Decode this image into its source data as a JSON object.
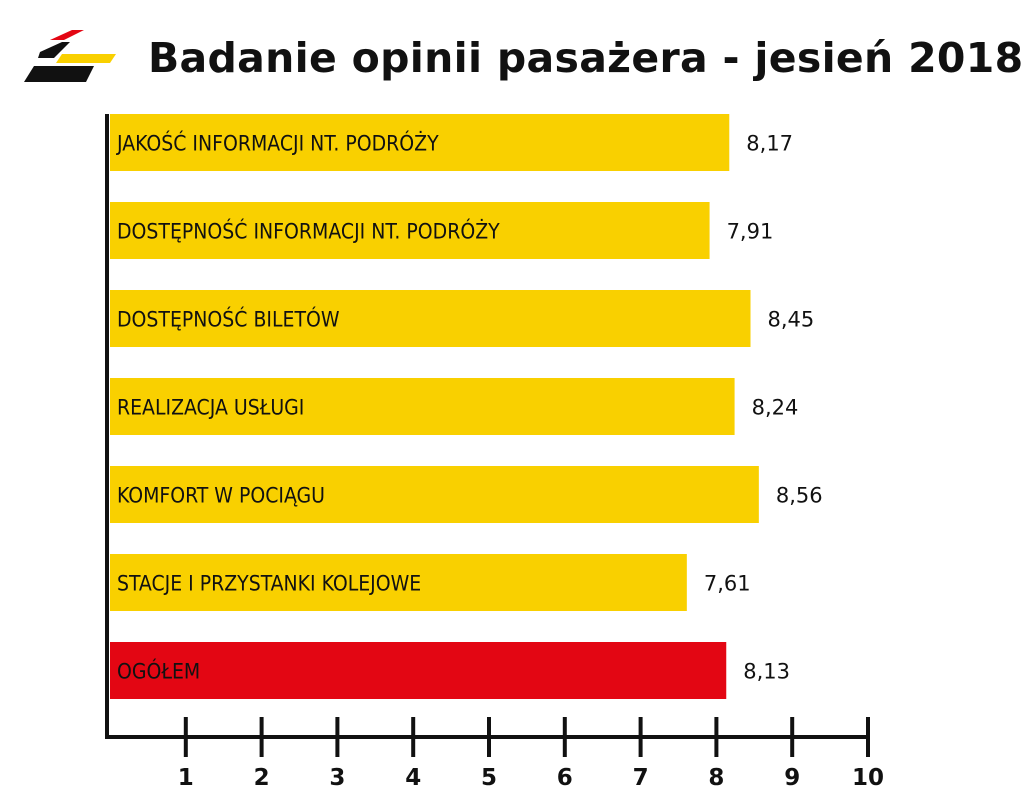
{
  "header": {
    "title": "Badanie opinii pasażera - jesień 2018",
    "logo_icon": "brand-logo-icon"
  },
  "colors": {
    "bar_default": "#f9d000",
    "bar_highlight": "#e30613",
    "axis": "#111111",
    "logo_red": "#e30613",
    "logo_yellow": "#f9d000",
    "logo_black": "#111111"
  },
  "chart_data": {
    "type": "bar",
    "orientation": "horizontal",
    "categories": [
      "JAKOŚĆ INFORMACJI NT. PODRÓŻY",
      "DOSTĘPNOŚĆ INFORMACJI NT. PODRÓŻY",
      "DOSTĘPNOŚĆ BILETÓW",
      "REALIZACJA USŁUGI",
      "KOMFORT W POCIĄGU",
      "STACJE I PRZYSTANKI KOLEJOWE",
      "OGÓŁEM"
    ],
    "values": [
      8.17,
      7.91,
      8.45,
      8.24,
      8.56,
      7.61,
      8.13
    ],
    "value_labels": [
      "8,17",
      "7,91",
      "8,45",
      "8,24",
      "8,56",
      "7,61",
      "8,13"
    ],
    "highlight": [
      false,
      false,
      false,
      false,
      false,
      false,
      true
    ],
    "xlim": [
      0,
      10
    ],
    "xticks": [
      1,
      2,
      3,
      4,
      5,
      6,
      7,
      8,
      9,
      10
    ],
    "title": "Badanie opinii pasażera - jesień 2018",
    "xlabel": "",
    "ylabel": "",
    "grid": false,
    "legend": "none"
  }
}
